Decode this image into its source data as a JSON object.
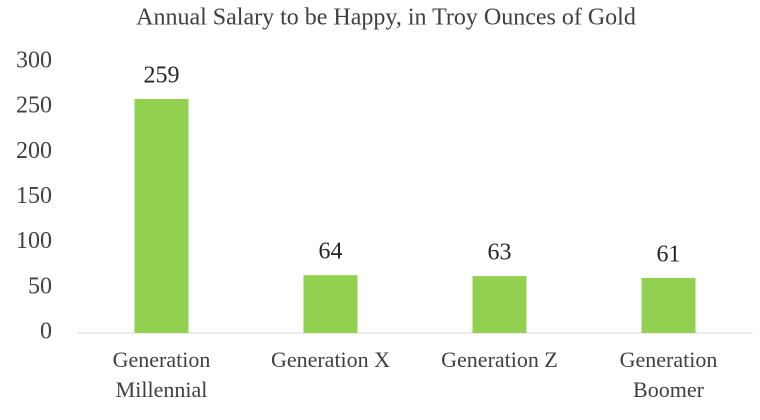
{
  "chart_data": {
    "type": "bar",
    "title": "Annual Salary to be Happy, in Troy Ounces of Gold",
    "categories": [
      "Generation Millennial",
      "Generation X",
      "Generation Z",
      "Generation Boomer"
    ],
    "values": [
      259,
      64,
      63,
      61
    ],
    "color": "#92d050",
    "ylim": [
      0,
      300
    ],
    "yticks": [
      0,
      50,
      100,
      150,
      200,
      250,
      300
    ],
    "grid": false
  }
}
